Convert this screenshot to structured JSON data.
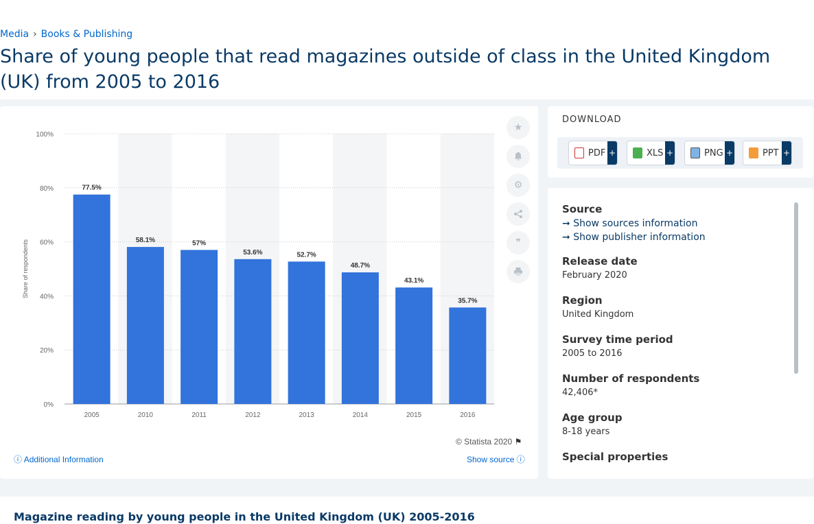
{
  "breadcrumb": {
    "item1": "Media",
    "sep": "›",
    "item2": "Books & Publishing"
  },
  "page_title": "Share of young people that read magazines outside of class in the United Kingdom (UK) from 2005 to 2016",
  "colors": {
    "bar": "#3273dc",
    "hover_band": "#f4f5f6",
    "accent": "#0a3a66"
  },
  "chart_data": {
    "type": "bar",
    "categories": [
      "2005",
      "2010",
      "2011",
      "2012",
      "2013",
      "2014",
      "2015",
      "2016"
    ],
    "values": [
      77.5,
      58.1,
      57,
      53.6,
      52.7,
      48.7,
      43.1,
      35.7
    ],
    "value_labels": [
      "77.5%",
      "58.1%",
      "57%",
      "53.6%",
      "52.7%",
      "48.7%",
      "43.1%",
      "35.7%"
    ],
    "ylabel": "Share of respondents",
    "ylim": [
      0,
      100
    ],
    "yticks": [
      "0%",
      "20%",
      "40%",
      "60%",
      "80%",
      "100%"
    ],
    "grid": true
  },
  "tools": [
    "star-icon",
    "bell-icon",
    "gear-icon",
    "share-icon",
    "quote-icon",
    "print-icon"
  ],
  "chart_footer": {
    "copyright": "© Statista 2020",
    "additional": "Additional Information",
    "show_source": "Show source"
  },
  "download": {
    "title": "DOWNLOAD",
    "buttons": [
      {
        "label": "PDF",
        "plus": "+"
      },
      {
        "label": "XLS",
        "plus": "+"
      },
      {
        "label": "PNG",
        "plus": "+"
      },
      {
        "label": "PPT",
        "plus": "+"
      }
    ]
  },
  "info": {
    "source_label": "Source",
    "show_sources": "Show sources information",
    "show_publisher": "Show publisher information",
    "release_label": "Release date",
    "release_value": "February 2020",
    "region_label": "Region",
    "region_value": "United Kingdom",
    "survey_label": "Survey time period",
    "survey_value": "2005 to 2016",
    "respondents_label": "Number of respondents",
    "respondents_value": "42,406*",
    "age_label": "Age group",
    "age_value": "8-18 years",
    "special_label": "Special properties"
  },
  "bottom_title": "Magazine reading by young people in the United Kingdom (UK) 2005-2016"
}
